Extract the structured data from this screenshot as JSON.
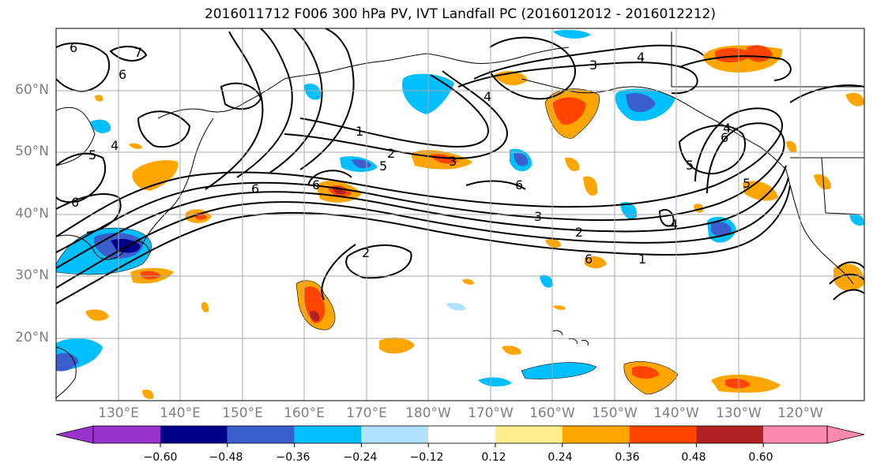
{
  "title": "2016011712 F006 300 hPa PV, IVT Landfall PC (2016012012 - 2016012212)",
  "lat_labels": [
    "60°N",
    "50°N",
    "40°N",
    "30°N",
    "20°N"
  ],
  "lon_labels": [
    "130°E",
    "140°E",
    "150°E",
    "160°E",
    "170°E",
    "180°W",
    "170°W",
    "160°W",
    "150°W",
    "140°W",
    "130°W",
    "120°W"
  ],
  "contour_labels": [
    "6",
    "6",
    "7",
    "6",
    "5",
    "4",
    "6",
    "1",
    "2",
    "3",
    "4",
    "5",
    "6",
    "4",
    "3",
    "6",
    "1",
    "2",
    "3",
    "4",
    "5",
    "6",
    "2",
    "4",
    "5",
    "6"
  ],
  "colorbar": {
    "ticks": [
      "−0.60",
      "−0.48",
      "−0.36",
      "−0.24",
      "−0.12",
      "0.12",
      "0.24",
      "0.36",
      "0.48",
      "0.60"
    ],
    "levels": [
      -0.6,
      -0.48,
      -0.36,
      -0.24,
      -0.12,
      0.12,
      0.24,
      0.36,
      0.48,
      0.6
    ],
    "colors": [
      "#9933cc",
      "#00008b",
      "#3a5fcd",
      "#00bfff",
      "#b0e2ff",
      "#ffffff",
      "#ffec8b",
      "#ffa500",
      "#ff4500",
      "#b22222",
      "#ff88b0"
    ]
  },
  "grid_color": "#aaaaaa",
  "tick_label_color": "#7f7f7f"
}
